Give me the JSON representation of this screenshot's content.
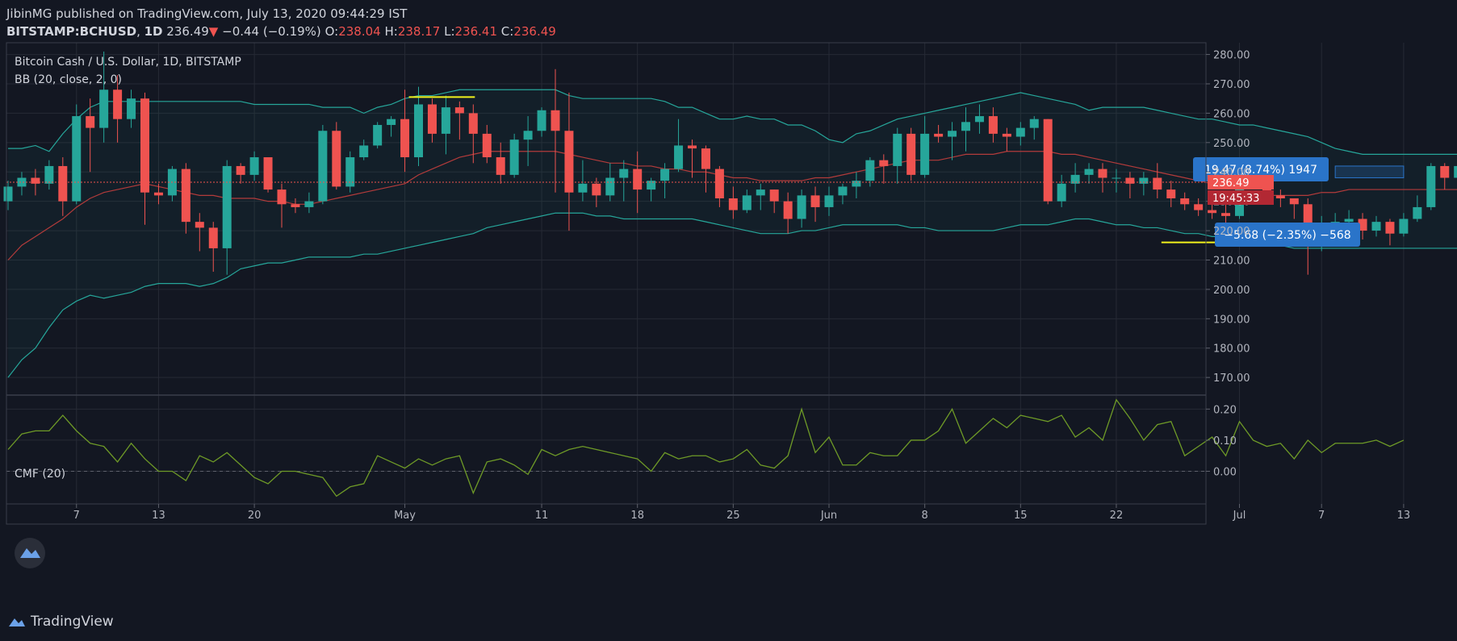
{
  "header": {
    "publisher": "JibinMG",
    "published_text": " published on TradingView.com, July 13, 2020 09:44:29 IST",
    "symbol": "BITSTAMP:BCHUSD",
    "interval": "1D",
    "last": "236.49",
    "change_arrow": "▼",
    "change": "−0.44 (−0.19%)",
    "o_label": "O:",
    "o_value": "238.04",
    "h_label": "H:",
    "h_value": "238.17",
    "l_label": "L:",
    "l_value": "236.41",
    "c_label": "C:",
    "c_value": "236.49"
  },
  "legend": {
    "main": "Bitcoin Cash / U.S. Dollar, 1D, BITSTAMP",
    "bb": "BB (20, close, 2, 0)",
    "cmf": "CMF (20)"
  },
  "price_badge": "236.49",
  "countdown_badge": "19:45:33",
  "footer": {
    "brand": "TradingView"
  },
  "colors": {
    "background": "#131722",
    "up": "#26a69a",
    "down": "#ef5350",
    "bb_band": "#26a69a",
    "bb_basis": "#b33b3b",
    "cmf_line": "#6e9a27",
    "annotation_line": "#f2f21c",
    "measure_box": "#2a74c9"
  },
  "annotations": {
    "measure_up": "19.47 (8.74%) 1947",
    "measure_down": "−5.68 (−2.35%) −568"
  },
  "chart_data": [
    {
      "type": "candlestick",
      "title": "Bitcoin Cash / U.S. Dollar, 1D, BITSTAMP",
      "ylim": [
        164,
        284
      ],
      "y_ticks": [
        280,
        270,
        260,
        250,
        240,
        230,
        220,
        210,
        200,
        190,
        180,
        170
      ],
      "y_tick_labels": [
        "280.00",
        "270.00",
        "260.00",
        "250.00",
        "240.00",
        "230.00",
        "220.00",
        "210.00",
        "200.00",
        "190.00",
        "180.00",
        "170.00"
      ],
      "x_ticks": [
        {
          "label": "7",
          "day": 5
        },
        {
          "label": "13",
          "day": 11
        },
        {
          "label": "20",
          "day": 18
        },
        {
          "label": "May",
          "day": 29
        },
        {
          "label": "11",
          "day": 39
        },
        {
          "label": "18",
          "day": 46
        },
        {
          "label": "25",
          "day": 53
        },
        {
          "label": "Jun",
          "day": 60
        },
        {
          "label": "8",
          "day": 67
        },
        {
          "label": "15",
          "day": 74
        },
        {
          "label": "22",
          "day": 81
        },
        {
          "label": "Jul",
          "day": 90
        },
        {
          "label": "7",
          "day": 96
        },
        {
          "label": "13",
          "day": 102
        }
      ],
      "candles": [
        [
          230,
          235,
          227,
          237
        ],
        [
          235,
          238,
          232,
          240
        ],
        [
          238,
          236,
          232,
          241
        ],
        [
          236,
          242,
          234,
          244
        ],
        [
          242,
          230,
          225,
          245
        ],
        [
          230,
          259,
          229,
          263
        ],
        [
          259,
          255,
          240,
          265
        ],
        [
          255,
          268,
          250,
          281
        ],
        [
          268,
          258,
          250,
          273
        ],
        [
          258,
          265,
          255,
          268
        ],
        [
          265,
          233,
          222,
          267
        ],
        [
          233,
          232,
          229,
          236
        ],
        [
          232,
          241,
          230,
          242
        ],
        [
          241,
          223,
          219,
          243
        ],
        [
          223,
          221,
          213,
          226
        ],
        [
          221,
          214,
          206,
          223
        ],
        [
          214,
          242,
          205,
          244
        ],
        [
          242,
          239,
          236,
          243
        ],
        [
          239,
          245,
          237,
          247
        ],
        [
          245,
          234,
          233,
          245
        ],
        [
          234,
          229,
          221,
          236
        ],
        [
          229,
          228,
          226,
          231
        ],
        [
          228,
          230,
          226,
          233
        ],
        [
          230,
          254,
          229,
          256
        ],
        [
          254,
          235,
          234,
          257
        ],
        [
          235,
          245,
          233,
          247
        ],
        [
          245,
          249,
          244,
          251
        ],
        [
          249,
          256,
          248,
          257
        ],
        [
          256,
          258,
          252,
          259
        ],
        [
          258,
          245,
          240,
          268
        ],
        [
          245,
          263,
          242,
          269
        ],
        [
          263,
          253,
          250,
          265
        ],
        [
          253,
          262,
          246,
          266
        ],
        [
          262,
          260,
          251,
          264
        ],
        [
          260,
          253,
          243,
          263
        ],
        [
          253,
          245,
          243,
          256
        ],
        [
          245,
          239,
          236,
          250
        ],
        [
          239,
          251,
          238,
          253
        ],
        [
          251,
          254,
          242,
          259
        ],
        [
          254,
          261,
          252,
          262
        ],
        [
          261,
          254,
          233,
          275
        ],
        [
          254,
          233,
          220,
          267
        ],
        [
          233,
          236,
          230,
          244
        ],
        [
          236,
          232,
          228,
          238
        ],
        [
          232,
          238,
          230,
          243
        ],
        [
          238,
          241,
          230,
          244
        ],
        [
          241,
          234,
          226,
          247
        ],
        [
          234,
          237,
          230,
          238
        ],
        [
          237,
          241,
          231,
          243
        ],
        [
          241,
          249,
          240,
          258
        ],
        [
          249,
          248,
          238,
          251
        ],
        [
          248,
          241,
          233,
          249
        ],
        [
          241,
          231,
          228,
          242
        ],
        [
          231,
          227,
          224,
          235
        ],
        [
          227,
          232,
          226,
          234
        ],
        [
          232,
          234,
          227,
          236
        ],
        [
          234,
          230,
          226,
          234
        ],
        [
          230,
          224,
          219,
          233
        ],
        [
          224,
          232,
          221,
          234
        ],
        [
          232,
          228,
          223,
          235
        ],
        [
          228,
          232,
          225,
          235
        ],
        [
          232,
          235,
          229,
          236
        ],
        [
          235,
          237,
          231,
          240
        ],
        [
          237,
          244,
          235,
          245
        ],
        [
          244,
          242,
          236,
          246
        ],
        [
          242,
          253,
          236,
          255
        ],
        [
          253,
          239,
          237,
          255
        ],
        [
          239,
          253,
          238,
          259
        ],
        [
          253,
          252,
          250,
          256
        ],
        [
          252,
          254,
          244,
          257
        ],
        [
          254,
          257,
          247,
          262
        ],
        [
          257,
          259,
          253,
          263
        ],
        [
          259,
          253,
          250,
          262
        ],
        [
          253,
          252,
          247,
          255
        ],
        [
          252,
          255,
          249,
          257
        ],
        [
          255,
          258,
          251,
          259
        ],
        [
          258,
          230,
          229,
          258
        ],
        [
          230,
          236,
          228,
          239
        ],
        [
          236,
          239,
          233,
          243
        ],
        [
          239,
          241,
          236,
          243
        ],
        [
          241,
          238,
          233,
          243
        ],
        [
          238,
          238,
          233,
          241
        ],
        [
          238,
          236,
          231,
          240
        ],
        [
          236,
          238,
          232,
          240
        ],
        [
          238,
          234,
          231,
          243
        ],
        [
          234,
          231,
          228,
          237
        ],
        [
          231,
          229,
          227,
          233
        ],
        [
          229,
          227,
          225,
          231
        ],
        [
          227,
          226,
          224,
          230
        ],
        [
          226,
          225,
          222,
          229
        ],
        [
          225,
          241,
          224,
          242
        ],
        [
          241,
          239,
          235,
          244
        ],
        [
          239,
          232,
          230,
          242
        ],
        [
          232,
          231,
          228,
          234
        ],
        [
          231,
          229,
          224,
          231
        ],
        [
          229,
          215,
          205,
          231
        ],
        [
          215,
          221,
          213,
          225
        ],
        [
          221,
          223,
          218,
          226
        ],
        [
          223,
          224,
          218,
          227
        ],
        [
          224,
          220,
          217,
          226
        ],
        [
          220,
          223,
          218,
          225
        ],
        [
          223,
          219,
          215,
          224
        ],
        [
          219,
          224,
          218,
          226
        ],
        [
          224,
          228,
          223,
          232
        ],
        [
          228,
          242,
          227,
          243
        ],
        [
          242,
          238,
          234,
          243
        ],
        [
          238,
          242,
          235,
          244
        ],
        [
          242,
          238,
          233,
          243
        ],
        [
          238,
          237,
          234,
          240
        ],
        [
          237,
          236,
          235,
          238
        ],
        [
          238.04,
          236.49,
          236.41,
          238.17
        ]
      ],
      "candle_labels": "open, close, low, high per candle",
      "bb_upper": [
        248,
        248,
        249,
        247,
        253,
        258,
        262,
        264,
        264,
        264,
        264,
        264,
        264,
        264,
        264,
        264,
        264,
        264,
        263,
        263,
        263,
        263,
        263,
        262,
        262,
        262,
        260,
        262,
        263,
        265,
        266,
        266,
        267,
        268,
        268,
        268,
        268,
        268,
        268,
        268,
        268,
        266,
        265,
        265,
        265,
        265,
        265,
        265,
        264,
        262,
        262,
        260,
        258,
        258,
        259,
        258,
        258,
        256,
        256,
        254,
        251,
        250,
        253,
        254,
        256,
        258,
        259,
        260,
        261,
        262,
        263,
        264,
        265,
        266,
        267,
        266,
        265,
        264,
        263,
        261,
        262,
        262,
        262,
        262,
        261,
        260,
        259,
        258,
        258,
        257,
        256,
        256,
        255,
        254,
        253,
        252,
        250,
        248,
        247,
        246,
        246,
        246,
        246,
        246,
        246,
        246,
        246,
        246,
        246,
        246
      ],
      "bb_basis": [
        210,
        215,
        218,
        221,
        224,
        228,
        231,
        233,
        234,
        235,
        236,
        235,
        234,
        233,
        232,
        232,
        231,
        231,
        231,
        230,
        230,
        229,
        229,
        230,
        231,
        232,
        233,
        234,
        235,
        236,
        239,
        241,
        243,
        245,
        246,
        247,
        247,
        247,
        247,
        247,
        247,
        246,
        245,
        244,
        243,
        243,
        242,
        242,
        241,
        241,
        240,
        240,
        239,
        238,
        238,
        237,
        237,
        237,
        237,
        238,
        238,
        239,
        240,
        241,
        242,
        243,
        244,
        244,
        244,
        245,
        246,
        246,
        246,
        247,
        247,
        247,
        247,
        246,
        246,
        245,
        244,
        243,
        242,
        241,
        240,
        239,
        238,
        237,
        236,
        235,
        234,
        233,
        232,
        232,
        232,
        232,
        233,
        233,
        234,
        234,
        234,
        234,
        234,
        234,
        234,
        234,
        234,
        234,
        234,
        234
      ],
      "bb_lower": [
        170,
        176,
        180,
        187,
        193,
        196,
        198,
        197,
        198,
        199,
        201,
        202,
        202,
        202,
        201,
        202,
        204,
        207,
        208,
        209,
        209,
        210,
        211,
        211,
        211,
        211,
        212,
        212,
        213,
        214,
        215,
        216,
        217,
        218,
        219,
        221,
        222,
        223,
        224,
        225,
        226,
        226,
        226,
        225,
        225,
        224,
        224,
        224,
        224,
        224,
        224,
        223,
        222,
        221,
        220,
        219,
        219,
        219,
        220,
        220,
        221,
        222,
        222,
        222,
        222,
        222,
        221,
        221,
        220,
        220,
        220,
        220,
        220,
        221,
        222,
        222,
        222,
        223,
        224,
        224,
        223,
        222,
        222,
        221,
        221,
        220,
        219,
        219,
        218,
        218,
        217,
        217,
        216,
        215,
        214,
        214,
        214,
        214,
        214,
        214,
        214,
        214,
        214,
        214,
        214,
        214,
        214,
        214,
        214,
        214
      ]
    },
    {
      "type": "line",
      "title": "CMF (20)",
      "ylim": [
        -0.105,
        0.245
      ],
      "y_ticks": [
        0.2,
        0.1,
        0.0
      ],
      "y_tick_labels": [
        "0.20",
        "0.10",
        "0.00"
      ],
      "values": [
        0.07,
        0.12,
        0.13,
        0.13,
        0.18,
        0.13,
        0.09,
        0.08,
        0.03,
        0.09,
        0.04,
        0.0,
        0.0,
        -0.03,
        0.05,
        0.03,
        0.06,
        0.02,
        -0.02,
        -0.04,
        0.0,
        0.0,
        -0.01,
        -0.02,
        -0.08,
        -0.05,
        -0.04,
        0.05,
        0.03,
        0.01,
        0.04,
        0.02,
        0.04,
        0.05,
        -0.07,
        0.03,
        0.04,
        0.02,
        -0.01,
        0.07,
        0.05,
        0.07,
        0.08,
        0.07,
        0.06,
        0.05,
        0.04,
        0.0,
        0.06,
        0.04,
        0.05,
        0.05,
        0.03,
        0.04,
        0.07,
        0.02,
        0.01,
        0.05,
        0.2,
        0.06,
        0.11,
        0.02,
        0.02,
        0.06,
        0.05,
        0.05,
        0.1,
        0.1,
        0.13,
        0.2,
        0.09,
        0.13,
        0.17,
        0.14,
        0.18,
        0.17,
        0.16,
        0.18,
        0.11,
        0.14,
        0.1,
        0.23,
        0.17,
        0.1,
        0.15,
        0.16,
        0.05,
        0.08,
        0.11,
        0.05,
        0.16,
        0.1,
        0.08,
        0.09,
        0.04,
        0.1,
        0.06,
        0.09,
        0.09,
        0.09,
        0.1,
        0.08,
        0.1
      ]
    }
  ]
}
